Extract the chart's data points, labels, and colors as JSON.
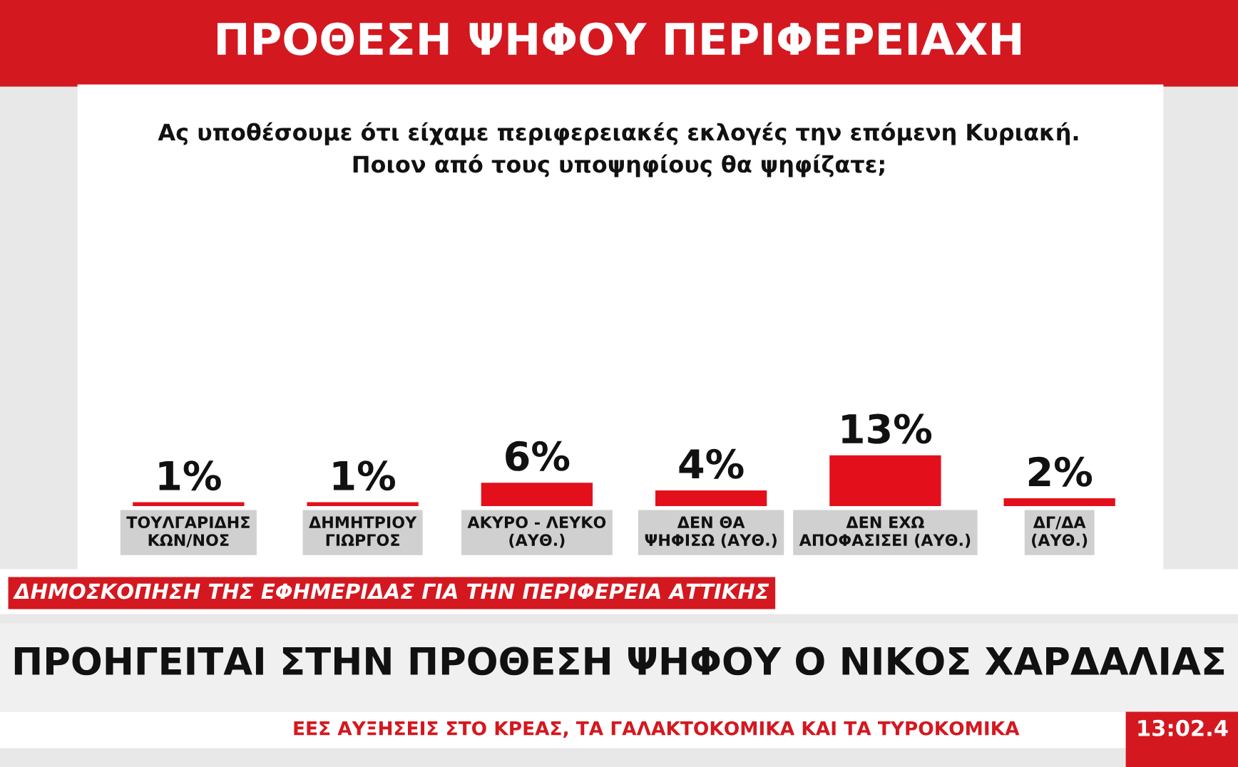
{
  "chart_data": {
    "type": "bar",
    "title": "ΠΡΟΘΕΣΗ ΨΗΦΟΥ ΠΕΡΙΦΕΡΕΙΑΧΗ",
    "subtitle": "Ας υποθέσουμε ότι είχαμε περιφερειακές εκλογές την επόμενη Κυριακή.\nΠοιον από τους υποψηφίους θα ψηφίζατε;",
    "categories": [
      "ΤΟΥΛΓΑΡΙΔΗΣ\nΚΩΝ/ΝΟΣ",
      "ΔΗΜΗΤΡΙΟΥ\nΓΙΩΡΓΟΣ",
      "ΑΚΥΡΟ - ΛΕΥΚΟ\n(ΑΥΘ.)",
      "ΔΕΝ ΘΑ\nΨΗΦΙΣΩ (ΑΥΘ.)",
      "ΔΕΝ ΕΧΩ\nΑΠΟΦΑΣΙΣΕΙ (ΑΥΘ.)",
      "ΔΓ/ΔΑ\n(ΑΥΘ.)"
    ],
    "values": [
      1,
      1,
      6,
      4,
      13,
      2
    ],
    "value_labels": [
      "1%",
      "1%",
      "6%",
      "4%",
      "13%",
      "2%"
    ],
    "color": "#e3101c",
    "data_labels": true,
    "tick_labels": "x",
    "annotations": [
      "ΔΗΜΟΣΚΟΠΗΣΗ ΤΗΣ ΕΦΗΜΕΡΙΔΑΣ ΓΙΑ ΤΗΝ ΠΕΡΙΦΕΡΕΙΑ ΑΤΤΙΚΗΣ",
      "ΠΡΟΗΓΕΙΤΑΙ ΣΤΗΝ ΠΡΟΘΕΣΗ ΨΗΦΟΥ Ο ΝΙΚΟΣ ΧΑΡΔΑΛΙΑΣ",
      "ΕΕΣ ΑΥΞΗΣΕΙΣ ΣΤΟ ΚΡΕΑΣ, ΤΑ ΓΑΛΑΚΤΟΚΟΜΙΚΑ ΚΑΙ ΤΑ ΤΥΡΟΚΟΜΙΚΑ",
      "13:02.4"
    ]
  }
}
